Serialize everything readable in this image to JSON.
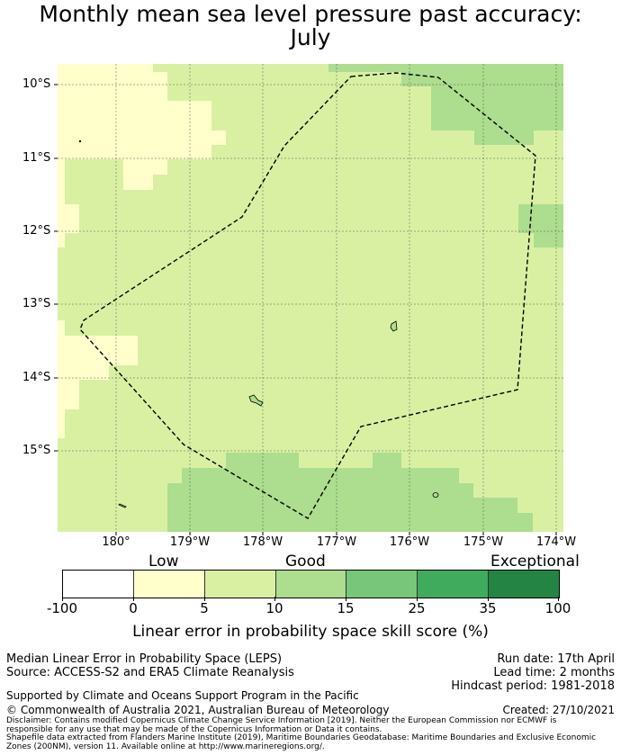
{
  "title": {
    "line1": "Monthly mean sea level pressure past accuracy:",
    "line2": "July"
  },
  "map": {
    "lat_labels": [
      "10°S",
      "11°S",
      "12°S",
      "13°S",
      "14°S",
      "15°S"
    ],
    "lon_labels": [
      "180°",
      "179°W",
      "178°W",
      "177°W",
      "176°W",
      "175°W",
      "174°W"
    ],
    "colors": {
      "low": "#ffffcc",
      "good": "#d9f0a3",
      "good_high": "#addd8e",
      "grid": "#555555",
      "boundary": "#000000"
    }
  },
  "colorbar": {
    "category_labels": [
      "Low",
      "Good",
      "Exceptional"
    ],
    "tick_labels": [
      "-100",
      "0",
      "5",
      "10",
      "15",
      "25",
      "35",
      "100"
    ],
    "colors": [
      "#ffffff",
      "#ffffcc",
      "#d9f0a3",
      "#addd8e",
      "#78c679",
      "#41ab5d",
      "#238443"
    ],
    "label": "Linear error in probability space skill score (%)"
  },
  "footer": {
    "left1": "Median Linear Error in Probability Space (LEPS)",
    "left2": "Source: ACCESS-S2 and ERA5 Climate Reanalysis",
    "left3": "Supported by Climate and Oceans Support Program in the Pacific",
    "left4": "© Commonwealth of Australia 2021, Australian Bureau of Meteorology",
    "run_date": "Run date: 17th April",
    "lead_time": "Lead time: 2 months",
    "hindcast": "Hindcast period: 1981-2018",
    "created": "Created: 27/10/2021",
    "disclaimer": "Disclaimer: Contains modified Copernicus Climate Change Service Information [2019]. Neither the European Commission nor ECMWF is responsible for any use that may be made of the Copernicus Information or Data it contains.",
    "shapefile": "Shapefile data extracted from Flanders Marine Institute (2019), Maritime Boundaries Geodatabase: Maritime Boundaries and Exclusive Economic Zones (200NM), version 11. Available online at http://www.marineregions.org/."
  }
}
